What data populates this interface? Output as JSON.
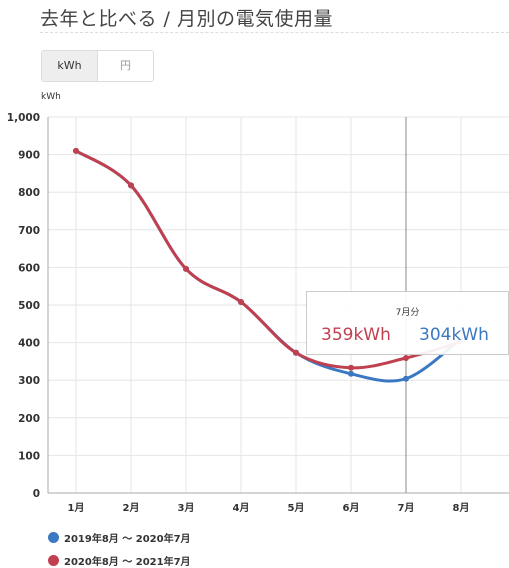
{
  "header": {
    "title": "去年と比べる / 月別の電気使用量"
  },
  "toggle": {
    "kwh_label": "kWh",
    "yen_label": "円"
  },
  "chart_data": {
    "type": "line",
    "unit_label": "kWh",
    "categories": [
      "1月",
      "2月",
      "3月",
      "4月",
      "5月",
      "6月",
      "7月",
      "8月"
    ],
    "ylim": [
      0,
      1000
    ],
    "yticks": [
      "0",
      "100",
      "200",
      "300",
      "400",
      "500",
      "600",
      "700",
      "800",
      "900",
      "1,000"
    ],
    "grid": true,
    "legend_position": "bottom-left",
    "series": [
      {
        "name": "2019年8月 〜 2020年7月",
        "color": "#3b78c2",
        "values": [
          910,
          818,
          596,
          508,
          373,
          317,
          304,
          410
        ]
      },
      {
        "name": "2020年8月 〜 2021年7月",
        "color": "#c0404f",
        "values": [
          910,
          818,
          596,
          508,
          373,
          333,
          359,
          402
        ]
      }
    ],
    "tooltip": {
      "title": "7月分",
      "value_a": "359kWh",
      "value_b": "304kWh",
      "color_a": "#c0404f",
      "color_b": "#3b78c2"
    }
  }
}
